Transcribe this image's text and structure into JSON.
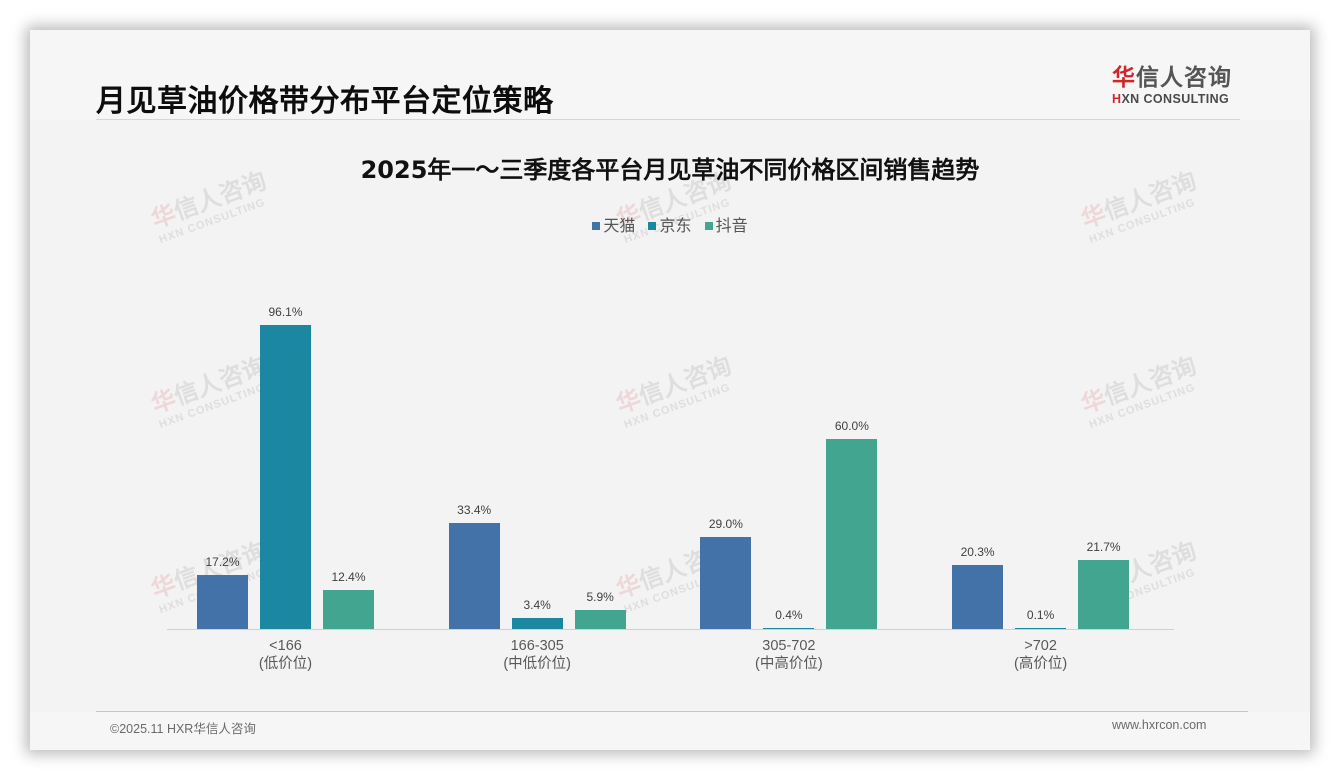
{
  "header": {
    "page_title": "月见草油价格带分布平台定位策略",
    "logo": {
      "cn_red": "华",
      "cn_rest": "信人咨询",
      "en_red": "H",
      "en_rest": "XN CONSULTING"
    }
  },
  "watermark": {
    "cn_red": "华",
    "cn_rest": "信人咨询",
    "en": "HXN CONSULTING"
  },
  "footer": {
    "copyright": "©2025.11 HXR华信人咨询",
    "website": "www.hxrcon.com"
  },
  "colors": {
    "tmall": "#4272a8",
    "jd": "#1b87a0",
    "douyin": "#41a590",
    "accent_red": "#d0252b"
  },
  "chart_data": {
    "type": "bar",
    "title": "2025年一～三季度各平台月见草油不同价格区间销售趋势",
    "xlabel": "",
    "ylabel": "",
    "ylim": [
      0,
      100
    ],
    "grid": false,
    "legend_position": "top",
    "categories": [
      "<166\n(低价位)",
      "166-305\n(中低价位)",
      "305-702\n(中高价位)",
      ">702\n(高价位)"
    ],
    "category_ranges": [
      "<166",
      "166-305",
      "305-702",
      ">702"
    ],
    "category_tiers": [
      "(低价位)",
      "(中低价位)",
      "(中高价位)",
      "(高价位)"
    ],
    "series": [
      {
        "name": "天猫",
        "color": "#4272a8",
        "values": [
          17.2,
          33.4,
          29.0,
          20.3
        ],
        "labels": [
          "17.2%",
          "33.4%",
          "29.0%",
          "20.3%"
        ]
      },
      {
        "name": "京东",
        "color": "#1b87a0",
        "values": [
          96.1,
          3.4,
          0.4,
          0.1
        ],
        "labels": [
          "96.1%",
          "3.4%",
          "0.4%",
          "0.1%"
        ]
      },
      {
        "name": "抖音",
        "color": "#41a590",
        "values": [
          12.4,
          5.9,
          60.0,
          21.7
        ],
        "labels": [
          "12.4%",
          "5.9%",
          "60.0%",
          "21.7%"
        ]
      }
    ]
  }
}
